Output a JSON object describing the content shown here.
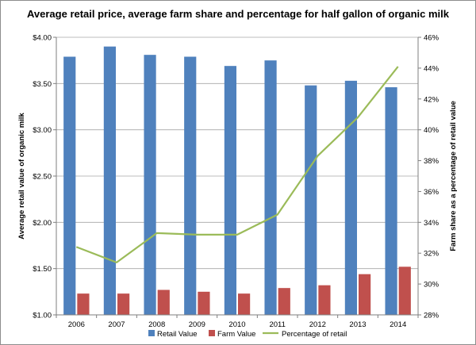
{
  "chart_data": {
    "type": "bar",
    "title": "Average retail price, average farm share and percentage for half gallon of organic milk",
    "categories": [
      "2006",
      "2007",
      "2008",
      "2009",
      "2010",
      "2011",
      "2012",
      "2013",
      "2014"
    ],
    "series": [
      {
        "name": "Retail Value",
        "type": "bar",
        "axis": "left",
        "color": "#4f81bd",
        "values": [
          3.79,
          3.9,
          3.81,
          3.79,
          3.69,
          3.75,
          3.48,
          3.53,
          3.46
        ]
      },
      {
        "name": "Farm Value",
        "type": "bar",
        "axis": "left",
        "color": "#c0504d",
        "values": [
          1.23,
          1.23,
          1.27,
          1.25,
          1.23,
          1.29,
          1.32,
          1.44,
          1.52
        ]
      },
      {
        "name": "Percentage of retail",
        "type": "line",
        "axis": "right",
        "color": "#9bbb59",
        "values": [
          32.4,
          31.4,
          33.3,
          33.2,
          33.2,
          34.5,
          38.3,
          40.8,
          44.1
        ]
      }
    ],
    "ylabel": "Average retail value of organic milk",
    "y2label": "Farm share as a percentage of retail value",
    "ylim": [
      1.0,
      4.0
    ],
    "y2lim": [
      28,
      46
    ],
    "yticks": [
      "$1.00",
      "$1.50",
      "$2.00",
      "$2.50",
      "$3.00",
      "$3.50",
      "$4.00"
    ],
    "y2ticks": [
      "28%",
      "30%",
      "32%",
      "34%",
      "36%",
      "38%",
      "40%",
      "42%",
      "44%",
      "46%"
    ],
    "grid": "horizontal",
    "legend": "bottom"
  }
}
